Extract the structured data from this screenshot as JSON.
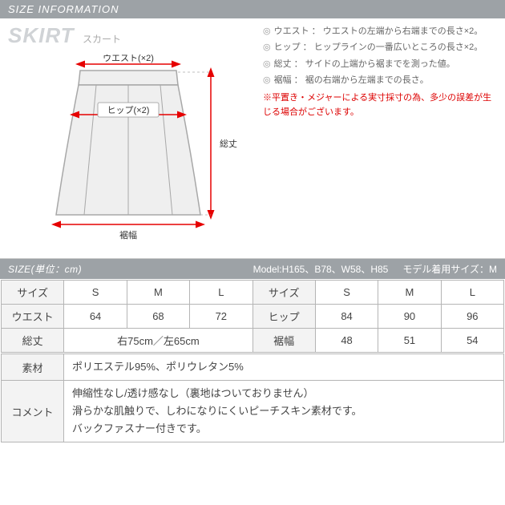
{
  "headers": {
    "main": "SIZE INFORMATION",
    "sub_left": "SIZE(単位：cm)",
    "sub_model": "Model:H165、B78、W58、H85",
    "sub_model_size": "モデル着用サイズ：M"
  },
  "title": {
    "en": "SKIRT",
    "ja": "スカート"
  },
  "diagram_labels": {
    "waist": "ウエスト(×2)",
    "hip": "ヒップ(×2)",
    "sotake": "総丈",
    "susohaba": "裾幅"
  },
  "definitions": [
    {
      "label": "ウエスト",
      "text": "ウエストの左端から右端までの長さ×2。"
    },
    {
      "label": "ヒップ",
      "text": "ヒップラインの一番広いところの長さ×2。"
    },
    {
      "label": "総丈",
      "text": "サイドの上端から裾までを測った値。"
    },
    {
      "label": "裾幅",
      "text": "裾の右端から左端までの長さ。"
    }
  ],
  "note": "※平置き・メジャーによる実寸採寸の為、多少の誤差が生じる場合がございます。",
  "size_table": {
    "row1": [
      "サイズ",
      "S",
      "M",
      "L",
      "サイズ",
      "S",
      "M",
      "L"
    ],
    "row2": [
      "ウエスト",
      "64",
      "68",
      "72",
      "ヒップ",
      "84",
      "90",
      "96"
    ],
    "row3_left_label": "総丈",
    "row3_left_val": "右75cm／左65cm",
    "row3_right_label": "裾幅",
    "row3_right_vals": [
      "48",
      "51",
      "54"
    ]
  },
  "bottom": {
    "material_label": "素材",
    "material_text": "ポリエステル95%、ポリウレタン5%",
    "comment_label": "コメント",
    "comment_text": "伸縮性なし/透け感なし（裏地はついておりません）\n滑らかな肌触りで、しわになりにくいピーチスキン素材です。\nバックファスナー付きです。"
  },
  "colors": {
    "arrow": "#e60000",
    "skirt_stroke": "#a8a8a8",
    "skirt_fill": "#efefef"
  }
}
